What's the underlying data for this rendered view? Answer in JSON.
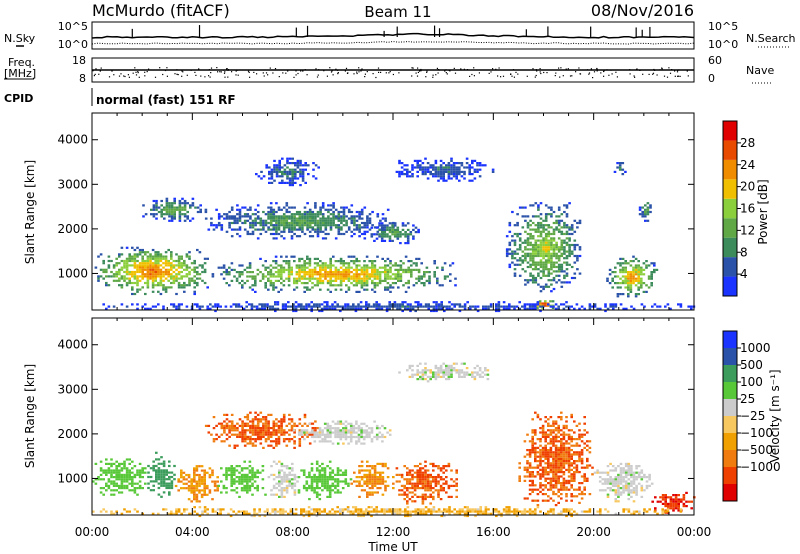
{
  "header": {
    "station": "McMurdo (fitACF)",
    "beam": "Beam 11",
    "date": "08/Nov/2016"
  },
  "status_strip": {
    "nsky_label": "N.Sky",
    "nsearch_label": "N.Search",
    "noise_ticks": [
      "10^5",
      "10^0"
    ],
    "freq_label_line1": "Freq.",
    "freq_label_line2": "[MHz]",
    "freq_ticks": [
      "18",
      "8"
    ],
    "nave_label": "Nave",
    "nave_ticks": [
      "60",
      "0"
    ],
    "cpid_label": "CPID",
    "cpid_text": "normal (fast) 151 RF"
  },
  "colors": {
    "power_scale": [
      "#1a33ff",
      "#2a52a8",
      "#3c8b5a",
      "#5fa845",
      "#8ccf3c",
      "#f0c000",
      "#f08c00",
      "#e84a00",
      "#e00000"
    ],
    "velocity_scale": [
      "#e00000",
      "#f04000",
      "#f07c10",
      "#f0a000",
      "#f8c860",
      "#cccccc",
      "#58c838",
      "#3c9c5c",
      "#2a52a8",
      "#1a33ff"
    ]
  },
  "chart_data": [
    {
      "type": "heatmap",
      "name": "power",
      "xlabel": "Time UT",
      "ylabel": "Slant Range [km]",
      "x_ticks": [
        "00:00",
        "04:00",
        "08:00",
        "12:00",
        "16:00",
        "20:00",
        "00:00"
      ],
      "y_ticks": [
        1000,
        2000,
        3000,
        4000
      ],
      "ylim": [
        180,
        4600
      ],
      "colorbar_label": "Power [dB]",
      "colorbar_ticks": [
        4,
        8,
        12,
        16,
        20,
        24,
        28
      ],
      "colorbar_range": [
        0,
        32
      ],
      "regions": [
        {
          "t0": 0.0,
          "t1": 4.8,
          "r0": 550,
          "r1": 1600,
          "peak": 26
        },
        {
          "t0": 4.8,
          "t1": 14.5,
          "r0": 600,
          "r1": 1400,
          "peak": 24
        },
        {
          "t0": 2.0,
          "t1": 4.5,
          "r0": 2200,
          "r1": 2700,
          "peak": 14
        },
        {
          "t0": 4.5,
          "t1": 12.0,
          "r0": 1800,
          "r1": 2600,
          "peak": 12
        },
        {
          "t0": 6.5,
          "t1": 9.0,
          "r0": 3000,
          "r1": 3600,
          "peak": 8
        },
        {
          "t0": 11.0,
          "t1": 13.0,
          "r0": 1700,
          "r1": 2200,
          "peak": 12
        },
        {
          "t0": 12.0,
          "t1": 16.0,
          "r0": 3100,
          "r1": 3600,
          "peak": 7
        },
        {
          "t0": 16.5,
          "t1": 19.5,
          "r0": 600,
          "r1": 2600,
          "peak": 18
        },
        {
          "t0": 17.5,
          "t1": 18.5,
          "r0": 200,
          "r1": 450,
          "peak": 30
        },
        {
          "t0": 20.5,
          "t1": 22.5,
          "r0": 500,
          "r1": 1400,
          "peak": 24
        },
        {
          "t0": 20.8,
          "t1": 21.3,
          "r0": 3200,
          "r1": 3600,
          "peak": 10
        },
        {
          "t0": 21.8,
          "t1": 22.3,
          "r0": 2200,
          "r1": 2700,
          "peak": 12
        },
        {
          "t0": 0.0,
          "t1": 24.0,
          "r0": 180,
          "r1": 380,
          "peak": 6
        }
      ]
    },
    {
      "type": "heatmap",
      "name": "velocity",
      "xlabel": "Time UT",
      "ylabel": "Slant Range [km]",
      "x_ticks": [
        "00:00",
        "04:00",
        "08:00",
        "12:00",
        "16:00",
        "20:00",
        "00:00"
      ],
      "y_ticks": [
        1000,
        2000,
        3000,
        4000
      ],
      "ylim": [
        180,
        4600
      ],
      "colorbar_label": "Velocity [m s⁻¹]",
      "colorbar_ticks": [
        "1000",
        "500",
        "100",
        "25",
        "−25",
        "−100",
        "−500",
        "−1000"
      ],
      "regions": [
        {
          "t0": 0.0,
          "t1": 2.2,
          "r0": 650,
          "r1": 1500,
          "value": 100
        },
        {
          "t0": 2.2,
          "t1": 3.3,
          "r0": 600,
          "r1": 1600,
          "value": 300
        },
        {
          "t0": 3.3,
          "t1": 5.0,
          "r0": 500,
          "r1": 1300,
          "value": -100
        },
        {
          "t0": 5.0,
          "t1": 7.0,
          "r0": 600,
          "r1": 1400,
          "value": 100
        },
        {
          "t0": 7.0,
          "t1": 8.2,
          "r0": 600,
          "r1": 1400,
          "value": 0
        },
        {
          "t0": 8.2,
          "t1": 10.3,
          "r0": 550,
          "r1": 1400,
          "value": 100
        },
        {
          "t0": 10.3,
          "t1": 12.0,
          "r0": 600,
          "r1": 1400,
          "value": -100
        },
        {
          "t0": 12.0,
          "t1": 14.5,
          "r0": 450,
          "r1": 1400,
          "value": -300
        },
        {
          "t0": 4.5,
          "t1": 9.0,
          "r0": 1700,
          "r1": 2500,
          "value": -300
        },
        {
          "t0": 8.0,
          "t1": 12.0,
          "r0": 1800,
          "r1": 2300,
          "value": 0
        },
        {
          "t0": 12.0,
          "t1": 16.0,
          "r0": 3200,
          "r1": 3600,
          "value": 0
        },
        {
          "t0": 17.0,
          "t1": 20.0,
          "r0": 400,
          "r1": 2500,
          "value": -300
        },
        {
          "t0": 20.0,
          "t1": 22.3,
          "r0": 500,
          "r1": 1400,
          "value": 0
        },
        {
          "t0": 22.3,
          "t1": 24.0,
          "r0": 250,
          "r1": 700,
          "value": -700
        },
        {
          "t0": 0.0,
          "t1": 24.0,
          "r0": 180,
          "r1": 380,
          "value": -50
        }
      ]
    }
  ]
}
